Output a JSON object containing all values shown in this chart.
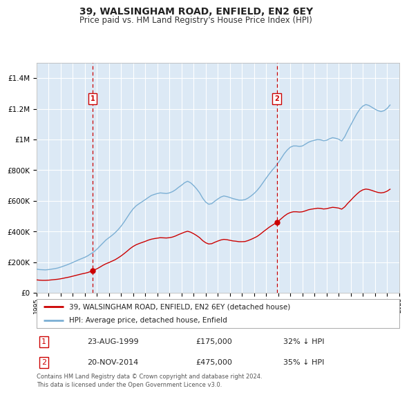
{
  "title": "39, WALSINGHAM ROAD, ENFIELD, EN2 6EY",
  "subtitle": "Price paid vs. HM Land Registry's House Price Index (HPI)",
  "background_color": "#ffffff",
  "plot_bg_color": "#dce9f5",
  "grid_color": "#ffffff",
  "red_line_color": "#cc0000",
  "blue_line_color": "#7bafd4",
  "transaction1_date": "23-AUG-1999",
  "transaction1_price": 175000,
  "transaction1_hpi_pct": "32% ↓ HPI",
  "transaction1_year": 1999.64,
  "transaction2_date": "20-NOV-2014",
  "transaction2_price": 475000,
  "transaction2_hpi_pct": "35% ↓ HPI",
  "transaction2_year": 2014.88,
  "legend_label_red": "39, WALSINGHAM ROAD, ENFIELD, EN2 6EY (detached house)",
  "legend_label_blue": "HPI: Average price, detached house, Enfield",
  "footer": "Contains HM Land Registry data © Crown copyright and database right 2024.\nThis data is licensed under the Open Government Licence v3.0.",
  "ylim": [
    0,
    1500000
  ],
  "yticks": [
    0,
    200000,
    400000,
    600000,
    800000,
    1000000,
    1200000,
    1400000
  ],
  "ytick_labels": [
    "£0",
    "£200K",
    "£400K",
    "£600K",
    "£800K",
    "£1M",
    "£1.2M",
    "£1.4M"
  ],
  "hpi_blue": {
    "years": [
      1995.0,
      1995.25,
      1995.5,
      1995.75,
      1996.0,
      1996.25,
      1996.5,
      1996.75,
      1997.0,
      1997.25,
      1997.5,
      1997.75,
      1998.0,
      1998.25,
      1998.5,
      1998.75,
      1999.0,
      1999.25,
      1999.5,
      1999.75,
      2000.0,
      2000.25,
      2000.5,
      2000.75,
      2001.0,
      2001.25,
      2001.5,
      2001.75,
      2002.0,
      2002.25,
      2002.5,
      2002.75,
      2003.0,
      2003.25,
      2003.5,
      2003.75,
      2004.0,
      2004.25,
      2004.5,
      2004.75,
      2005.0,
      2005.25,
      2005.5,
      2005.75,
      2006.0,
      2006.25,
      2006.5,
      2006.75,
      2007.0,
      2007.25,
      2007.5,
      2007.75,
      2008.0,
      2008.25,
      2008.5,
      2008.75,
      2009.0,
      2009.25,
      2009.5,
      2009.75,
      2010.0,
      2010.25,
      2010.5,
      2010.75,
      2011.0,
      2011.25,
      2011.5,
      2011.75,
      2012.0,
      2012.25,
      2012.5,
      2012.75,
      2013.0,
      2013.25,
      2013.5,
      2013.75,
      2014.0,
      2014.25,
      2014.5,
      2014.75,
      2015.0,
      2015.25,
      2015.5,
      2015.75,
      2016.0,
      2016.25,
      2016.5,
      2016.75,
      2017.0,
      2017.25,
      2017.5,
      2017.75,
      2018.0,
      2018.25,
      2018.5,
      2018.75,
      2019.0,
      2019.25,
      2019.5,
      2019.75,
      2020.0,
      2020.25,
      2020.5,
      2020.75,
      2021.0,
      2021.25,
      2021.5,
      2021.75,
      2022.0,
      2022.25,
      2022.5,
      2022.75,
      2023.0,
      2023.25,
      2023.5,
      2023.75,
      2024.0,
      2024.25
    ],
    "values": [
      155000,
      152000,
      151000,
      150000,
      152000,
      155000,
      158000,
      162000,
      168000,
      175000,
      182000,
      190000,
      198000,
      207000,
      216000,
      224000,
      232000,
      242000,
      255000,
      268000,
      285000,
      305000,
      325000,
      345000,
      360000,
      375000,
      392000,
      412000,
      435000,
      462000,
      492000,
      522000,
      548000,
      568000,
      582000,
      595000,
      608000,
      622000,
      635000,
      642000,
      648000,
      652000,
      650000,
      648000,
      652000,
      660000,
      672000,
      688000,
      702000,
      718000,
      728000,
      718000,
      700000,
      678000,
      652000,
      618000,
      592000,
      578000,
      582000,
      598000,
      612000,
      625000,
      632000,
      628000,
      622000,
      615000,
      610000,
      605000,
      605000,
      608000,
      618000,
      632000,
      648000,
      668000,
      692000,
      720000,
      748000,
      775000,
      800000,
      822000,
      848000,
      878000,
      908000,
      932000,
      950000,
      958000,
      958000,
      955000,
      958000,
      970000,
      982000,
      990000,
      995000,
      1000000,
      998000,
      992000,
      995000,
      1005000,
      1012000,
      1008000,
      1002000,
      990000,
      1018000,
      1058000,
      1095000,
      1132000,
      1168000,
      1198000,
      1218000,
      1228000,
      1222000,
      1210000,
      1198000,
      1188000,
      1182000,
      1188000,
      1202000,
      1225000
    ]
  },
  "hpi_red": {
    "years": [
      1995.0,
      1995.25,
      1995.5,
      1995.75,
      1996.0,
      1996.25,
      1996.5,
      1996.75,
      1997.0,
      1997.25,
      1997.5,
      1997.75,
      1998.0,
      1998.25,
      1998.5,
      1998.75,
      1999.0,
      1999.25,
      1999.5,
      1999.75,
      2000.0,
      2000.25,
      2000.5,
      2000.75,
      2001.0,
      2001.25,
      2001.5,
      2001.75,
      2002.0,
      2002.25,
      2002.5,
      2002.75,
      2003.0,
      2003.25,
      2003.5,
      2003.75,
      2004.0,
      2004.25,
      2004.5,
      2004.75,
      2005.0,
      2005.25,
      2005.5,
      2005.75,
      2006.0,
      2006.25,
      2006.5,
      2006.75,
      2007.0,
      2007.25,
      2007.5,
      2007.75,
      2008.0,
      2008.25,
      2008.5,
      2008.75,
      2009.0,
      2009.25,
      2009.5,
      2009.75,
      2010.0,
      2010.25,
      2010.5,
      2010.75,
      2011.0,
      2011.25,
      2011.5,
      2011.75,
      2012.0,
      2012.25,
      2012.5,
      2012.75,
      2013.0,
      2013.25,
      2013.5,
      2013.75,
      2014.0,
      2014.25,
      2014.5,
      2014.75,
      2015.0,
      2015.25,
      2015.5,
      2015.75,
      2016.0,
      2016.25,
      2016.5,
      2016.75,
      2017.0,
      2017.25,
      2017.5,
      2017.75,
      2018.0,
      2018.25,
      2018.5,
      2018.75,
      2019.0,
      2019.25,
      2019.5,
      2019.75,
      2020.0,
      2020.25,
      2020.5,
      2020.75,
      2021.0,
      2021.25,
      2021.5,
      2021.75,
      2022.0,
      2022.25,
      2022.5,
      2022.75,
      2023.0,
      2023.25,
      2023.5,
      2023.75,
      2024.0,
      2024.25
    ],
    "values": [
      85000,
      83000,
      82000,
      82000,
      83000,
      85000,
      87000,
      89000,
      92000,
      96000,
      100000,
      104000,
      109000,
      114000,
      119000,
      124000,
      128000,
      133000,
      140000,
      148000,
      157000,
      168000,
      180000,
      190000,
      198000,
      207000,
      216000,
      228000,
      241000,
      256000,
      272000,
      289000,
      303000,
      314000,
      322000,
      329000,
      336000,
      344000,
      350000,
      354000,
      357000,
      360000,
      359000,
      358000,
      360000,
      364000,
      371000,
      380000,
      388000,
      396000,
      402000,
      396000,
      386000,
      374000,
      360000,
      341000,
      327000,
      319000,
      321000,
      330000,
      338000,
      345000,
      349000,
      347000,
      343000,
      339000,
      337000,
      334000,
      334000,
      335000,
      341000,
      349000,
      358000,
      368000,
      382000,
      398000,
      413000,
      428000,
      441000,
      453000,
      467000,
      484000,
      501000,
      515000,
      524000,
      529000,
      529000,
      527000,
      529000,
      535000,
      542000,
      546000,
      549000,
      552000,
      551000,
      547000,
      549000,
      554000,
      558000,
      556000,
      553000,
      546000,
      561000,
      584000,
      604000,
      625000,
      644000,
      661000,
      672000,
      677000,
      674000,
      668000,
      661000,
      655000,
      652000,
      655000,
      663000,
      676000
    ]
  }
}
